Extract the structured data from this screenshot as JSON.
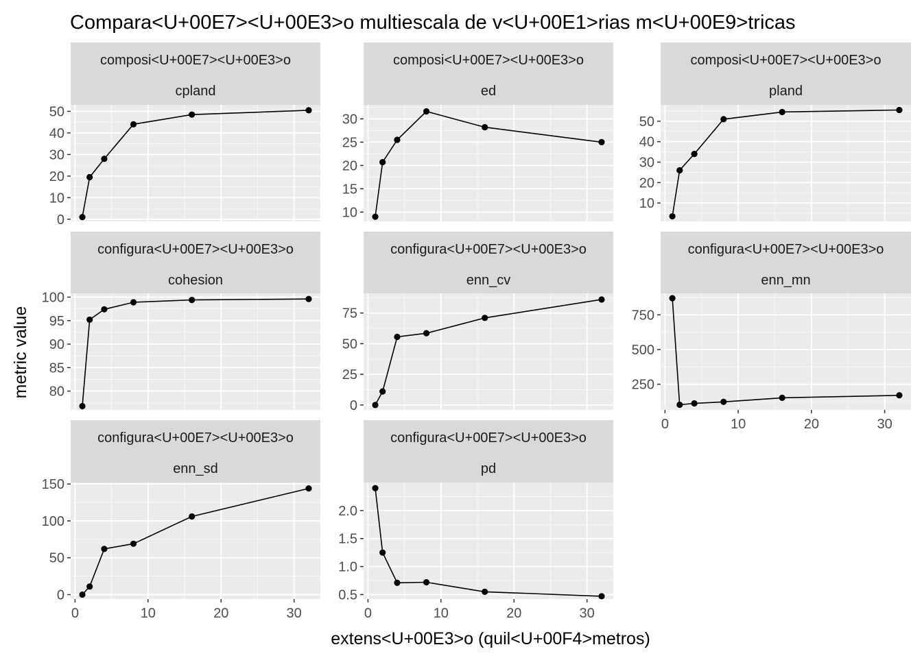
{
  "chart_data": {
    "type": "line",
    "title": "Compara<U+00E7><U+00E3>o multiescala de v<U+00E1>rias m<U+00E9>tricas",
    "xlabel": "extens<U+00E3>o (quil<U+00F4>metros)",
    "ylabel": "metric value",
    "x_ticks": [
      0,
      10,
      20,
      30
    ],
    "xlim": [
      -0.6,
      33.6
    ],
    "facet_layout": {
      "ncol": 3,
      "nrow": 3,
      "scales": "free_y"
    },
    "colors": {
      "panel_background": "#ebebeb",
      "strip_background": "#d9d9d9",
      "grid_major": "#ffffff",
      "line": "#000000",
      "point": "#000000",
      "axis_text": "#4d4d4d"
    },
    "panels": [
      {
        "strip_top": "composi<U+00E7><U+00E3>o",
        "strip_bottom": "cpland",
        "x": [
          1,
          2,
          4,
          8,
          16,
          32
        ],
        "values": [
          1,
          19.5,
          28,
          44,
          48.5,
          50.5
        ],
        "ylim": [
          -1,
          53
        ],
        "y_ticks": [
          0,
          10,
          20,
          30,
          40,
          50
        ]
      },
      {
        "strip_top": "composi<U+00E7><U+00E3>o",
        "strip_bottom": "ed",
        "x": [
          1,
          2,
          4,
          8,
          16,
          32
        ],
        "values": [
          9,
          20.7,
          25.5,
          31.6,
          28.2,
          25
        ],
        "ylim": [
          8,
          33
        ],
        "y_ticks": [
          10,
          15,
          20,
          25,
          30
        ]
      },
      {
        "strip_top": "composi<U+00E7><U+00E3>o",
        "strip_bottom": "pland",
        "x": [
          1,
          2,
          4,
          8,
          16,
          32
        ],
        "values": [
          3.5,
          26,
          34,
          51,
          54.5,
          55.5
        ],
        "ylim": [
          1,
          58
        ],
        "y_ticks": [
          10,
          20,
          30,
          40,
          50
        ]
      },
      {
        "strip_top": "configura<U+00E7><U+00E3>o",
        "strip_bottom": "cohesion",
        "x": [
          1,
          2,
          4,
          8,
          16,
          32
        ],
        "values": [
          76.8,
          95.2,
          97.4,
          98.9,
          99.4,
          99.6
        ],
        "ylim": [
          76,
          100.8
        ],
        "y_ticks": [
          80,
          85,
          90,
          95,
          100
        ]
      },
      {
        "strip_top": "configura<U+00E7><U+00E3>o",
        "strip_bottom": "enn_cv",
        "x": [
          1,
          2,
          4,
          8,
          16,
          32
        ],
        "values": [
          0,
          11,
          55.5,
          58.5,
          71,
          86
        ],
        "ylim": [
          -4,
          91
        ],
        "y_ticks": [
          0,
          25,
          50,
          75
        ]
      },
      {
        "strip_top": "configura<U+00E7><U+00E3>o",
        "strip_bottom": "enn_mn",
        "x": [
          1,
          2,
          4,
          8,
          16,
          32
        ],
        "values": [
          870,
          102,
          112,
          123,
          152,
          170
        ],
        "ylim": [
          65,
          905
        ],
        "y_ticks": [
          250,
          500,
          750
        ]
      },
      {
        "strip_top": "configura<U+00E7><U+00E3>o",
        "strip_bottom": "enn_sd",
        "x": [
          1,
          2,
          4,
          8,
          16,
          32
        ],
        "values": [
          0,
          11,
          62,
          69,
          106,
          144
        ],
        "ylim": [
          -6,
          152
        ],
        "y_ticks": [
          0,
          50,
          100,
          150
        ]
      },
      {
        "strip_top": "configura<U+00E7><U+00E3>o",
        "strip_bottom": "pd",
        "x": [
          1,
          2,
          4,
          8,
          16,
          32
        ],
        "values": [
          2.4,
          1.25,
          0.71,
          0.72,
          0.55,
          0.47
        ],
        "ylim": [
          0.42,
          2.5
        ],
        "y_ticks": [
          0.5,
          1.0,
          1.5,
          2.0
        ]
      }
    ]
  }
}
